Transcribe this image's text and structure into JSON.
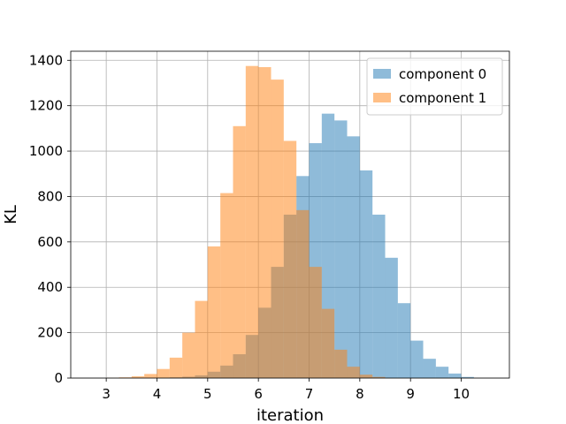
{
  "chart_data": {
    "type": "bar",
    "subtype": "histogram",
    "title": "",
    "xlabel": "iteration",
    "ylabel": "KL",
    "xlim": [
      2.3,
      10.95
    ],
    "ylim": [
      0,
      1440
    ],
    "xticks": [
      3,
      4,
      5,
      6,
      7,
      8,
      9,
      10
    ],
    "yticks": [
      0,
      200,
      400,
      600,
      800,
      1000,
      1200,
      1400
    ],
    "grid": true,
    "legend_position": "top-right",
    "bin_width": 0.25,
    "series": [
      {
        "name": "component 0",
        "color": "#1f77b4",
        "alpha": 0.5,
        "bin_starts": [
          4.0,
          4.25,
          4.5,
          4.75,
          5.0,
          5.25,
          5.5,
          5.75,
          6.0,
          6.25,
          6.5,
          6.75,
          7.0,
          7.25,
          7.5,
          7.75,
          8.0,
          8.25,
          8.5,
          8.75,
          9.0,
          9.25,
          9.5,
          9.75,
          10.0
        ],
        "counts": [
          2,
          3,
          6,
          12,
          28,
          55,
          105,
          190,
          310,
          490,
          720,
          890,
          1035,
          1165,
          1135,
          1065,
          915,
          720,
          530,
          330,
          165,
          85,
          50,
          20,
          5
        ]
      },
      {
        "name": "component 1",
        "color": "#ff7f0e",
        "alpha": 0.5,
        "bin_starts": [
          3.0,
          3.25,
          3.5,
          3.75,
          4.0,
          4.25,
          4.5,
          4.75,
          5.0,
          5.25,
          5.5,
          5.75,
          6.0,
          6.25,
          6.5,
          6.75,
          7.0,
          7.25,
          7.5,
          7.75,
          8.0,
          8.25
        ],
        "counts": [
          1,
          3,
          8,
          18,
          40,
          90,
          200,
          340,
          580,
          815,
          1110,
          1375,
          1370,
          1315,
          1045,
          740,
          490,
          305,
          125,
          50,
          15,
          5
        ]
      }
    ]
  }
}
